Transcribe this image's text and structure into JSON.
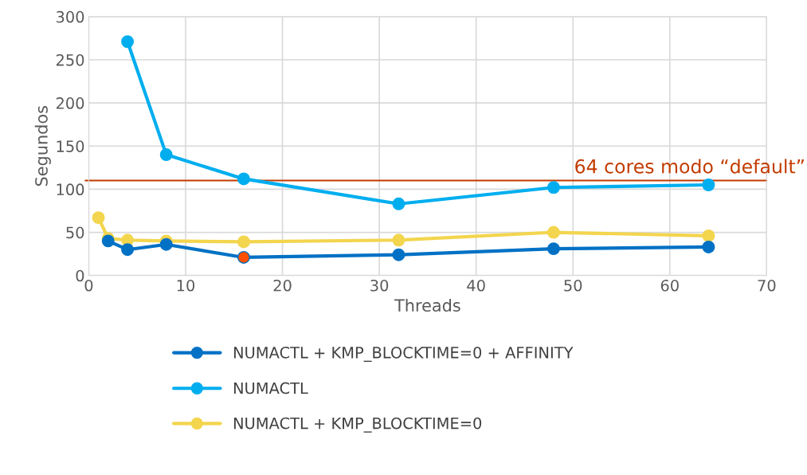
{
  "chart_data": {
    "type": "line",
    "xlabel": "Threads",
    "ylabel": "Segundos",
    "x": [
      1,
      2,
      4,
      8,
      16,
      32,
      48,
      64
    ],
    "series": [
      {
        "name": "NUMACTL + KMP_BLOCKTIME=0 + AFFINITY",
        "color": "#0071c5",
        "colors": [
          "#0071c5",
          "#0071c5",
          "#0071c5",
          "#0071c5",
          "#ff4f00",
          "#0071c5",
          "#0071c5",
          "#0071c5"
        ],
        "values": [
          null,
          40,
          30,
          36,
          21,
          24,
          31,
          33
        ]
      },
      {
        "name": "NUMACTL",
        "color": "#00aeef",
        "values": [
          null,
          null,
          271,
          140,
          112,
          83,
          102,
          105
        ]
      },
      {
        "name": "NUMACTL + KMP_BLOCKTIME=0",
        "color": "#f3d54e",
        "values": [
          67,
          43,
          41,
          40,
          39,
          41,
          50,
          46
        ]
      }
    ],
    "xlim": [
      0,
      70
    ],
    "xticks": [
      0,
      10,
      20,
      30,
      40,
      50,
      60,
      70
    ],
    "ylim": [
      0,
      300
    ],
    "yticks": [
      0,
      50,
      100,
      150,
      200,
      250,
      300
    ],
    "ref_lines": [
      {
        "axis": "y",
        "value": 110,
        "label": "64 cores modo “default”",
        "color": "#c23b00"
      }
    ],
    "grid": true,
    "legend": "bottom",
    "marker": "circle",
    "line_style": "solid"
  }
}
